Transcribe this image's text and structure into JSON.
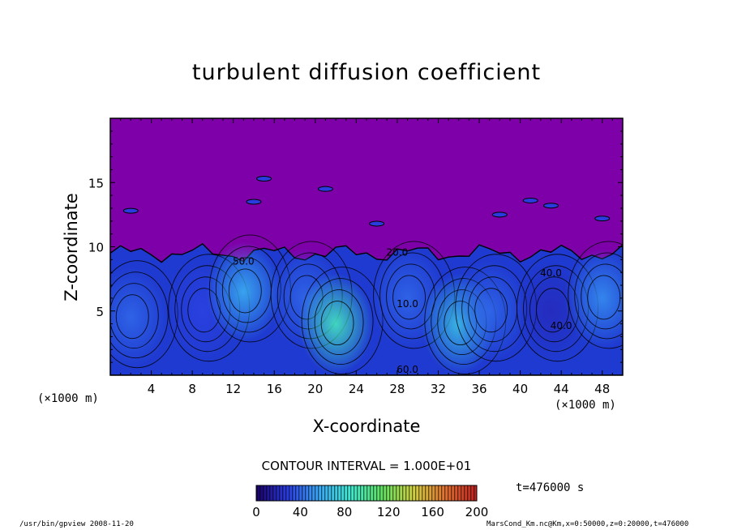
{
  "chart_data": {
    "type": "heatmap",
    "title": "turbulent diffusion coefficient",
    "xlabel": "X-coordinate",
    "ylabel": "Z-coordinate",
    "x_unit_left": "(×1000 m)",
    "x_unit_right": "(×1000 m)",
    "xlim": [
      0,
      50
    ],
    "ylim": [
      0,
      20
    ],
    "xticks": [
      4,
      8,
      12,
      16,
      20,
      24,
      28,
      32,
      36,
      40,
      44,
      48
    ],
    "yticks": [
      5,
      10,
      15
    ],
    "contour_labels": [
      "50.0",
      "20.0",
      "10.0",
      "40.0",
      "40.0",
      "60.0"
    ],
    "contour_interval": "CONTOUR INTERVAL = 1.000E+01",
    "time_label": "t=476000 s",
    "colorbar": {
      "min": 0,
      "max": 200,
      "ticks": [
        0,
        40,
        80,
        120,
        160,
        200
      ],
      "colors": [
        "#1a0066",
        "#2a3ce0",
        "#3aa8f5",
        "#40e8d0",
        "#60e060",
        "#d0d040",
        "#e07030",
        "#c02020"
      ]
    },
    "background_color": "#7e00a8",
    "turbulent_layer_top_approx": 10,
    "eddies": [
      {
        "x": 2,
        "z": 4.5,
        "value": 40
      },
      {
        "x": 9,
        "z": 5,
        "value": 30
      },
      {
        "x": 13,
        "z": 6.5,
        "value": 60
      },
      {
        "x": 19,
        "z": 6,
        "value": 40
      },
      {
        "x": 22,
        "z": 4,
        "value": 90
      },
      {
        "x": 29,
        "z": 6,
        "value": 40
      },
      {
        "x": 34,
        "z": 4,
        "value": 70
      },
      {
        "x": 37,
        "z": 5,
        "value": 40
      },
      {
        "x": 43,
        "z": 5,
        "value": 20
      },
      {
        "x": 48,
        "z": 6,
        "value": 50
      }
    ]
  },
  "footer": {
    "left": "/usr/bin/gpview  2008-11-20",
    "right": "MarsCond_Km.nc@Km,x=0:50000,z=0:20000,t=476000"
  }
}
